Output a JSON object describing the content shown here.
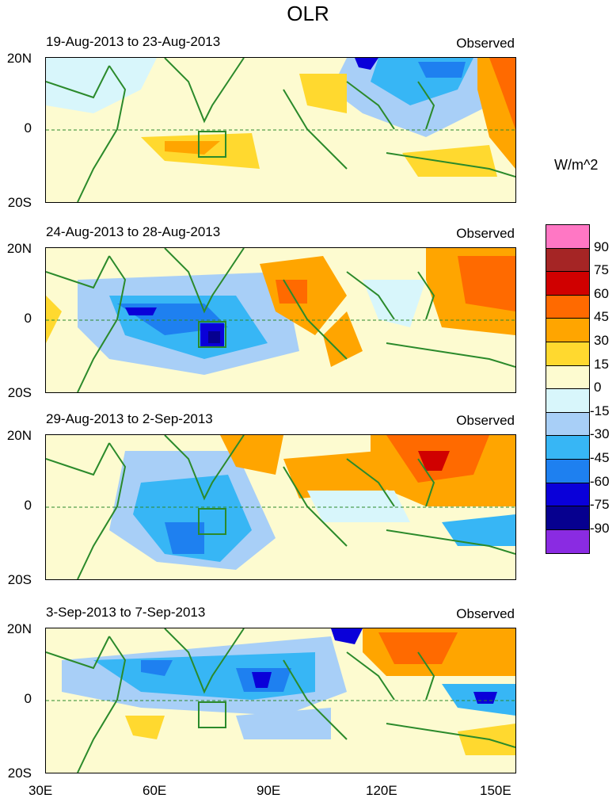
{
  "title": "OLR",
  "lat_labels": {
    "north": "20N",
    "eq": "0",
    "south": "20S"
  },
  "lon_labels": [
    "30E",
    "60E",
    "90E",
    "120E",
    "150E"
  ],
  "panels": [
    {
      "period": "19-Aug-2013 to 23-Aug-2013",
      "tag": "Observed"
    },
    {
      "period": "24-Aug-2013 to 28-Aug-2013",
      "tag": "Observed"
    },
    {
      "period": "29-Aug-2013 to 2-Sep-2013",
      "tag": "Observed"
    },
    {
      "period": "3-Sep-2013 to 7-Sep-2013",
      "tag": "Observed"
    }
  ],
  "colorbar": {
    "unit": "W/m^2",
    "labels": [
      "90",
      "75",
      "60",
      "45",
      "30",
      "15",
      "0",
      "-15",
      "-30",
      "-45",
      "-60",
      "-75",
      "-90"
    ],
    "colors": [
      "#ff77c4",
      "#a52525",
      "#d00000",
      "#ff6a00",
      "#ffa500",
      "#ffd92f",
      "#fdfbd0",
      "#d8f6fb",
      "#a8cff7",
      "#37b6f5",
      "#1e80f0",
      "#0a00d9",
      "#06008f",
      "#8a2be2"
    ]
  },
  "colors": {
    "land": "#2b8a2b"
  }
}
